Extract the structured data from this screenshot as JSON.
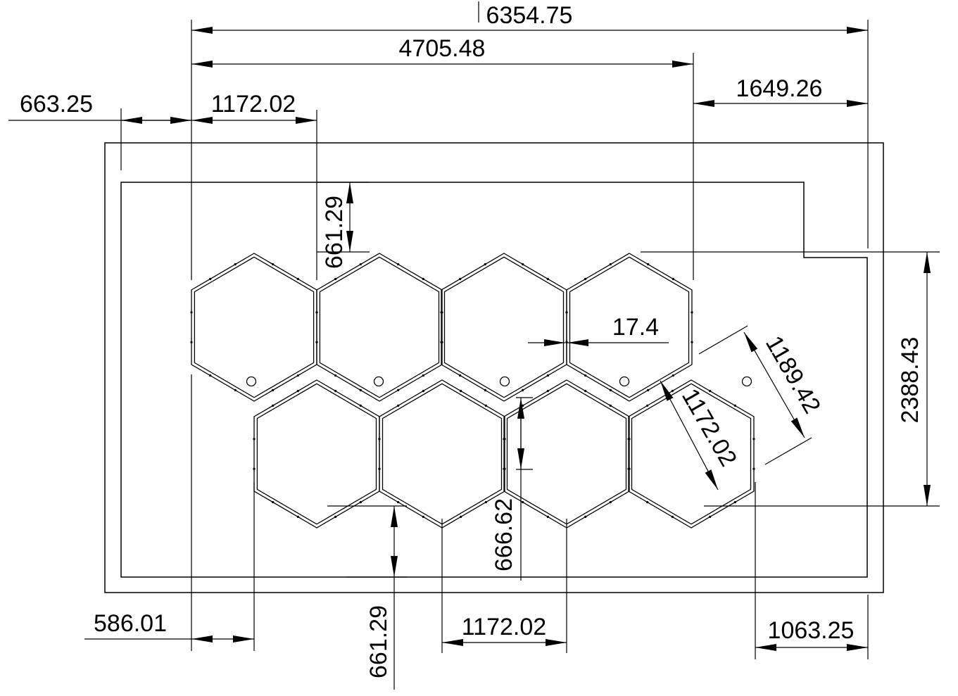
{
  "colors": {
    "line": "#000000",
    "background": "#ffffff"
  },
  "dimensions": {
    "overall_width": "6354.75",
    "inner_width": "4705.48",
    "right_offset": "1649.26",
    "left_offset": "663.25",
    "hex_width_top": "1172.02",
    "top_gap": "661.29",
    "hex_gap": "17.4",
    "hex_diagonal": "1189.42",
    "hex_flat_to_flat": "1172.02",
    "overall_height": "2388.43",
    "hex_edge": "666.62",
    "bottom_gap": "661.29",
    "bottom_left_offset": "586.01",
    "hex_width_bottom": "1172.02",
    "bottom_right_offset": "1063.25"
  }
}
